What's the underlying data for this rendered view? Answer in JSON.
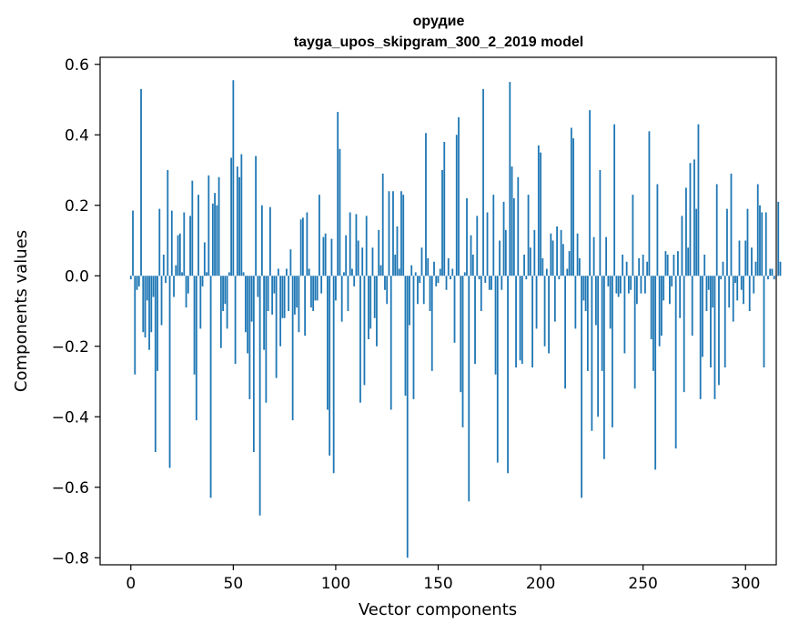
{
  "chart_data": {
    "type": "bar",
    "title": "орудие",
    "subtitle": "tayga_upos_skipgram_300_2_2019 model",
    "xlabel": "Vector components",
    "ylabel": "Components values",
    "xlim": [
      -15,
      315
    ],
    "ylim": [
      -0.82,
      0.62
    ],
    "xticks": [
      0,
      50,
      100,
      150,
      200,
      250,
      300
    ],
    "yticks": [
      -0.8,
      -0.6,
      -0.4,
      -0.2,
      0.0,
      0.2,
      0.4,
      0.6
    ],
    "xtick_labels": [
      "0",
      "50",
      "100",
      "150",
      "200",
      "250",
      "300"
    ],
    "ytick_labels": [
      "−0.8",
      "−0.6",
      "−0.4",
      "−0.2",
      "0.0",
      "0.2",
      "0.4",
      "0.6"
    ],
    "bar_color": "#1f77b4",
    "grid": false,
    "values": [
      -0.01,
      0.185,
      -0.28,
      -0.04,
      -0.03,
      0.53,
      -0.16,
      -0.175,
      -0.07,
      -0.21,
      -0.16,
      -0.06,
      -0.5,
      -0.27,
      0.19,
      -0.14,
      0.06,
      -0.02,
      0.3,
      -0.545,
      0.185,
      -0.06,
      0.03,
      0.115,
      0.12,
      0.01,
      0.18,
      -0.09,
      -0.05,
      0.17,
      0.27,
      -0.28,
      -0.41,
      0.23,
      -0.15,
      -0.03,
      0.095,
      0.01,
      0.285,
      -0.63,
      0.205,
      0.235,
      0.2,
      0.28,
      -0.205,
      -0.1,
      -0.08,
      -0.15,
      0.01,
      0.335,
      0.555,
      -0.25,
      0.31,
      0.28,
      0.345,
      0.01,
      -0.16,
      -0.22,
      -0.35,
      -0.13,
      -0.5,
      0.34,
      -0.06,
      -0.68,
      0.2,
      -0.21,
      -0.36,
      -0.1,
      0.195,
      -0.11,
      -0.05,
      -0.29,
      0.02,
      -0.2,
      -0.12,
      -0.12,
      0.02,
      -0.1,
      0.075,
      -0.41,
      -0.11,
      -0.09,
      -0.16,
      0.16,
      0.165,
      -0.17,
      0.18,
      0.02,
      -0.09,
      -0.1,
      -0.07,
      -0.07,
      0.23,
      -0.05,
      0.11,
      0.12,
      -0.38,
      -0.51,
      0.105,
      -0.56,
      -0.07,
      0.465,
      0.36,
      -0.13,
      0.01,
      0.115,
      -0.1,
      0.18,
      0.02,
      -0.03,
      0.175,
      0.1,
      -0.36,
      0.08,
      -0.31,
      0.17,
      -0.18,
      -0.15,
      0.08,
      -0.12,
      -0.2,
      0.13,
      0.03,
      0.29,
      -0.04,
      -0.08,
      0.24,
      -0.38,
      0.24,
      0.06,
      0.14,
      0.02,
      0.24,
      0.23,
      -0.34,
      -0.8,
      -0.14,
      0.03,
      -0.35,
      0.01,
      -0.08,
      -0.02,
      0.08,
      -0.08,
      0.405,
      0.05,
      -0.1,
      -0.27,
      0.04,
      -0.03,
      -0.02,
      0.02,
      0.3,
      0.38,
      -0.04,
      0.05,
      -0.01,
      0.02,
      -0.19,
      0.4,
      0.45,
      -0.33,
      -0.43,
      0.01,
      0.22,
      -0.64,
      0.115,
      0.06,
      -0.25,
      0.17,
      -0.01,
      -0.1,
      0.53,
      -0.02,
      0.18,
      -0.04,
      -0.04,
      0.23,
      -0.28,
      -0.53,
      0.1,
      -0.04,
      0.21,
      0.13,
      -0.56,
      0.55,
      0.31,
      0.22,
      -0.26,
      0.28,
      -0.24,
      -0.25,
      0.06,
      -0.01,
      0.23,
      0.08,
      -0.26,
      0.13,
      -0.15,
      0.37,
      0.35,
      0.05,
      -0.2,
      0.02,
      -0.22,
      0.12,
      0.1,
      -0.13,
      0.14,
      -0.01,
      0.13,
      0.09,
      -0.32,
      0.02,
      0.07,
      0.42,
      0.39,
      -0.15,
      0.12,
      0.05,
      -0.63,
      -0.07,
      -0.1,
      -0.27,
      0.47,
      -0.44,
      0.11,
      -0.14,
      -0.4,
      0.3,
      -0.27,
      -0.52,
      0.11,
      -0.03,
      -0.15,
      -0.43,
      0.43,
      -0.05,
      -0.06,
      -0.05,
      0.06,
      -0.22,
      0.04,
      -0.05,
      -0.04,
      0.23,
      -0.32,
      -0.08,
      0.05,
      -0.05,
      0.06,
      -0.05,
      0.04,
      0.41,
      -0.18,
      -0.27,
      -0.55,
      0.26,
      -0.2,
      -0.17,
      -0.07,
      0.07,
      0.06,
      -0.08,
      -0.03,
      0.06,
      -0.49,
      0.07,
      -0.12,
      0.17,
      -0.33,
      0.25,
      0.08,
      0.32,
      -0.17,
      0.33,
      0.19,
      0.43,
      -0.35,
      -0.23,
      0.06,
      -0.1,
      -0.04,
      -0.26,
      -0.09,
      -0.35,
      0.26,
      -0.31,
      -0.01,
      0.04,
      -0.26,
      0.19,
      -0.09,
      0.29,
      -0.13,
      -0.02,
      -0.07,
      0.1,
      -0.04,
      -0.08,
      0.1,
      0.19,
      -0.1,
      0.08,
      -0.05,
      0.04,
      0.26,
      0.2,
      0.18,
      -0.26,
      0.18,
      -0.01,
      0.02,
      0.02,
      -0.01,
      0.0,
      0.21,
      0.04
    ]
  }
}
